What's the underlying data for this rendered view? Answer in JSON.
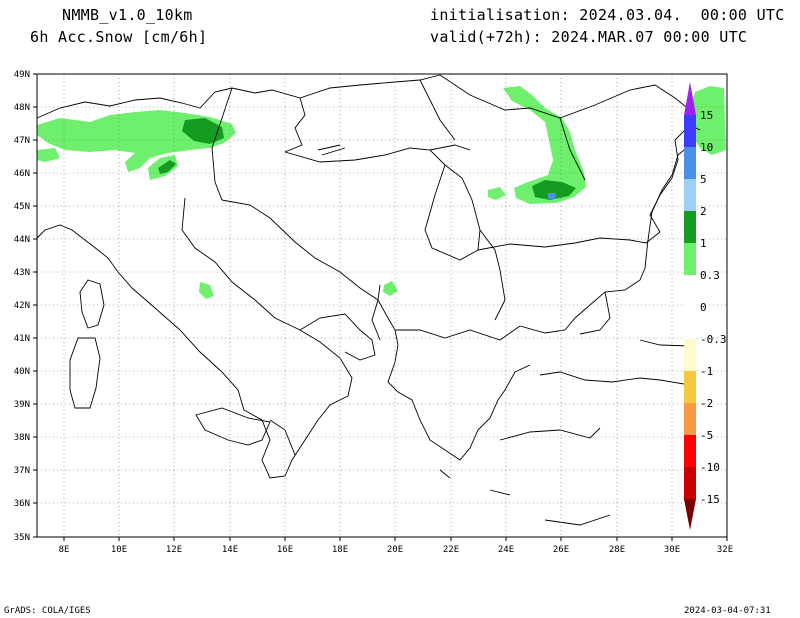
{
  "header": {
    "model": "NMMB_v1.0_10km",
    "field": "6h Acc.Snow [cm/6h]",
    "init": "initialisation: 2024.03.04.  00:00 UTC",
    "valid": "valid(+72h): 2024.MAR.07 00:00 UTC"
  },
  "footer": {
    "left": "GrADS: COLA/IGES",
    "right": "2024-03-04-07:31"
  },
  "axes": {
    "lon_labels": [
      "8E",
      "10E",
      "12E",
      "14E",
      "16E",
      "18E",
      "20E",
      "22E",
      "24E",
      "26E",
      "28E",
      "30E",
      "32E"
    ],
    "lat_labels": [
      "49N",
      "48N",
      "47N",
      "46N",
      "45N",
      "44N",
      "43N",
      "42N",
      "41N",
      "40N",
      "39N",
      "38N",
      "37N",
      "36N",
      "35N"
    ],
    "lon_range": [
      7,
      32
    ],
    "lat_range": [
      35,
      49
    ],
    "grid": "dotted"
  },
  "colorbar": {
    "labels": [
      "15",
      "10",
      "5",
      "2",
      "1",
      "0.3",
      "0",
      "-0.3",
      "-1",
      "-2",
      "-5",
      "-10",
      "-15"
    ],
    "colors": {
      "top_tip": "#a020f0",
      "c_10_15": "#3c3cff",
      "c_5_10": "#4a90e8",
      "c_2_5": "#9ecff5",
      "c_1_2": "#139c1f",
      "c_03_1": "#6ef06e",
      "neutral": "#ffffff",
      "n_03_1": "#fffbcc",
      "n_1_2": "#f5c842",
      "n_2_5": "#f59a42",
      "n_5_10": "#ff0000",
      "n_10_15": "#c80000",
      "bottom_tip": "#780000"
    }
  }
}
